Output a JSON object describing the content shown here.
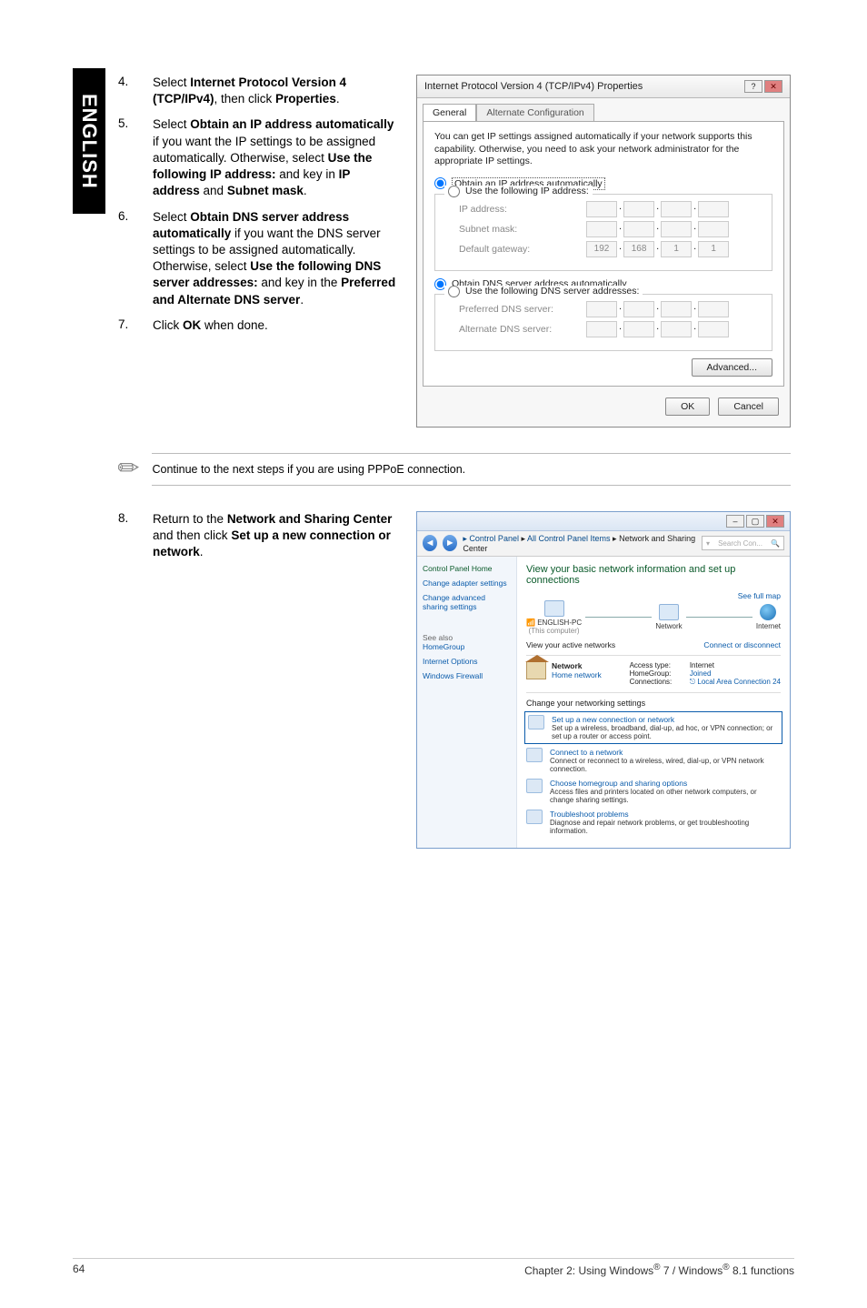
{
  "sidebar": {
    "label": "ENGLISH"
  },
  "steps": {
    "s4": {
      "num": "4.",
      "text_pre": "Select ",
      "b1": "Internet Protocol Version 4 (TCP/IPv4)",
      "mid": ", then click ",
      "b2": "Properties",
      "post": "."
    },
    "s5": {
      "num": "5.",
      "pre": "Select ",
      "b1": "Obtain an IP address automatically",
      "m1": " if you want the IP settings to be assigned automatically. Otherwise, select ",
      "b2": "Use the following IP address:",
      "m2": " and key in ",
      "b3": "IP address",
      "m3": " and ",
      "b4": "Subnet mask",
      "post": "."
    },
    "s6": {
      "num": "6.",
      "pre": "Select ",
      "b1": "Obtain DNS server address automatically",
      "m1": " if you want the DNS server settings to be assigned automatically. Otherwise, select ",
      "b2": "Use the following DNS server addresses:",
      "m2": " and key in the ",
      "b3": "Preferred and Alternate DNS server",
      "post": "."
    },
    "s7": {
      "num": "7.",
      "pre": "Click ",
      "b1": "OK",
      "post": " when done."
    },
    "s8": {
      "num": "8.",
      "pre": "Return to the ",
      "b1": "Network and Sharing Center",
      "m1": " and then click ",
      "b2": "Set up a new connection or network",
      "post": "."
    }
  },
  "dialog": {
    "title": "Internet Protocol Version 4 (TCP/IPv4) Properties",
    "tab1": "General",
    "tab2": "Alternate Configuration",
    "desc": "You can get IP settings assigned automatically if your network supports this capability. Otherwise, you need to ask your network administrator for the appropriate IP settings.",
    "r1": "Obtain an IP address automatically",
    "r2": "Use the following IP address:",
    "f_ip": "IP address:",
    "f_mask": "Subnet mask:",
    "f_gw": "Default gateway:",
    "gw_val": [
      "192",
      "168",
      "1",
      "1"
    ],
    "r3": "Obtain DNS server address automatically",
    "r4": "Use the following DNS server addresses:",
    "f_pdns": "Preferred DNS server:",
    "f_adns": "Alternate DNS server:",
    "btn_adv": "Advanced...",
    "btn_ok": "OK",
    "btn_cancel": "Cancel"
  },
  "note": "Continue to the next steps if you are using PPPoE connection.",
  "nsc": {
    "crumb_root": "Control Panel",
    "crumb_mid": "All Control Panel Items",
    "crumb_leaf": "Network and Sharing Center",
    "search_ph": "Search Con...",
    "side_home": "Control Panel Home",
    "side_adapter": "Change adapter settings",
    "side_adv": "Change advanced sharing settings",
    "side_also": "See also",
    "side_hg": "HomeGroup",
    "side_io": "Internet Options",
    "side_wf": "Windows Firewall",
    "heading": "View your basic network information and set up connections",
    "full_map": "See full map",
    "map_pc": "ENGLISH-PC",
    "map_pc_sub": "(This computer)",
    "map_net": "Network",
    "map_inet": "Internet",
    "view_active": "View your active networks",
    "conn_disc": "Connect or disconnect",
    "net_name": "Network",
    "net_type": "Home network",
    "at_label": "Access type:",
    "at_val": "Internet",
    "hg_label": "HomeGroup:",
    "hg_val": "Joined",
    "cn_label": "Connections:",
    "cn_val": "Local Area Connection 24",
    "change_h": "Change your networking settings",
    "t1_title": "Set up a new connection or network",
    "t1_desc": "Set up a wireless, broadband, dial-up, ad hoc, or VPN connection; or set up a router or access point.",
    "t2_title": "Connect to a network",
    "t2_desc": "Connect or reconnect to a wireless, wired, dial-up, or VPN network connection.",
    "t3_title": "Choose homegroup and sharing options",
    "t3_desc": "Access files and printers located on other network computers, or change sharing settings.",
    "t4_title": "Troubleshoot problems",
    "t4_desc": "Diagnose and repair network problems, or get troubleshooting information."
  },
  "footer": {
    "page": "64",
    "chapter_pre": "Chapter 2: Using Windows",
    "reg": "®",
    "seven": " 7 / Windows",
    "eight": " 8.1 functions"
  }
}
